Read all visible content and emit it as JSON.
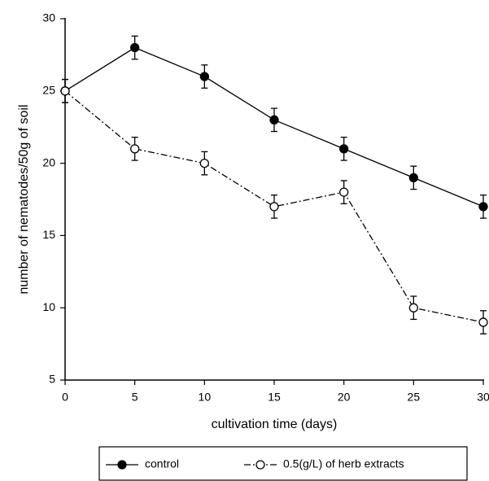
{
  "chart_data": {
    "type": "line",
    "x_label": "cultivation time (days)",
    "y_label": "number of nematodes/50g of soil",
    "x": [
      0,
      5,
      10,
      15,
      20,
      25,
      30
    ],
    "series": [
      {
        "name": "control",
        "color": "#000000",
        "marker_fill": "#000000",
        "dash": "solid",
        "values": [
          25,
          28,
          26,
          23,
          21,
          19,
          17
        ],
        "errors": [
          0.8,
          0.8,
          0.8,
          0.8,
          0.8,
          0.8,
          0.8
        ]
      },
      {
        "name": "0.5(g/L) of herb extracts",
        "color": "#000000",
        "marker_fill": "#ffffff",
        "dash": "dashdot",
        "values": [
          25,
          21,
          20,
          17,
          18,
          10,
          9
        ],
        "errors": [
          0.8,
          0.8,
          0.8,
          0.8,
          0.8,
          0.8,
          0.8
        ]
      }
    ],
    "xlim": [
      0,
      30
    ],
    "xticks": [
      0,
      5,
      10,
      15,
      20,
      25,
      30
    ],
    "ylim": [
      5,
      30
    ],
    "yticks": [
      5,
      10,
      15,
      20,
      25,
      30
    ],
    "grid": false,
    "legend": "bottom"
  }
}
